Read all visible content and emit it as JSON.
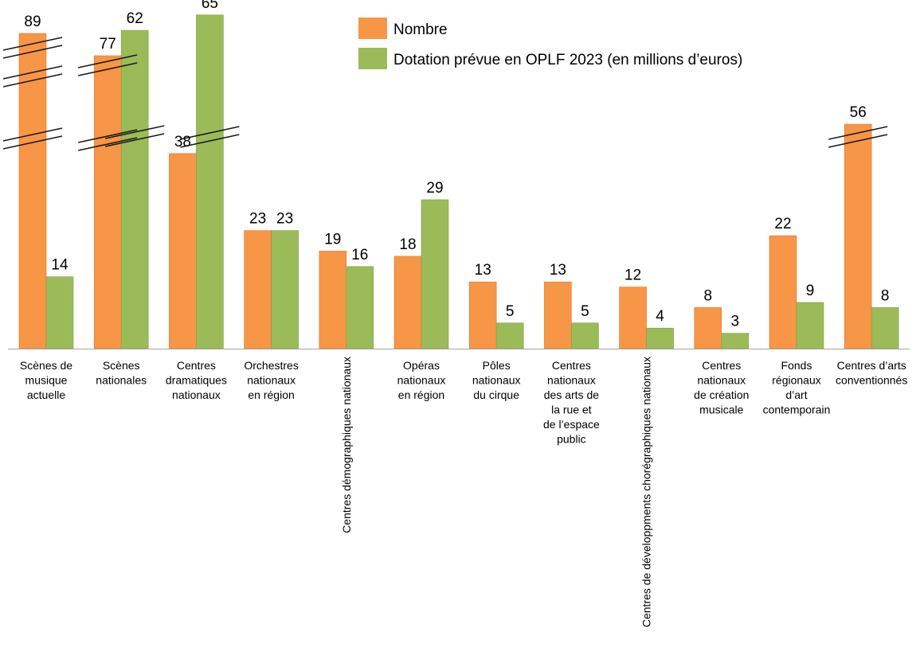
{
  "chart_data": {
    "type": "bar",
    "categories": [
      [
        "Scènes de",
        "musique",
        "actuelle"
      ],
      [
        "Scènes",
        "nationales"
      ],
      [
        "Centres",
        "dramatiques",
        "nationaux"
      ],
      [
        "Orchestres",
        "nationaux",
        "en région"
      ],
      [
        "Centres démographiques nationaux"
      ],
      [
        "Opéras",
        "nationaux",
        "en région"
      ],
      [
        "Pôles",
        "nationaux",
        "du cirque"
      ],
      [
        "Centres",
        "nationaux",
        "des arts de",
        "la rue  et",
        "de l’espace",
        "public"
      ],
      [
        "Centres de développments chorégraphiques nationaux"
      ],
      [
        "Centres",
        "nationaux",
        "de création",
        "musicale"
      ],
      [
        "Fonds",
        "régionaux",
        "d’art",
        "contemporain"
      ],
      [
        "Centres d’arts",
        "conventionnés"
      ]
    ],
    "vertical_category_labels": [
      4,
      8
    ],
    "series": [
      {
        "name": "Nombre",
        "color": "#F79646",
        "values": [
          89,
          77,
          38,
          23,
          19,
          18,
          13,
          13,
          12,
          8,
          22,
          56
        ]
      },
      {
        "name": "Dotation prévue en OPLF 2023 (en millions d’euros)",
        "color": "#9BBB59",
        "values": [
          14,
          62,
          65,
          23,
          16,
          29,
          5,
          5,
          4,
          3,
          9,
          8
        ]
      }
    ],
    "axis_breaks": {
      "series_0": {
        "0": 3,
        "1": 2,
        "11": 1
      },
      "series_1": {
        "1": 1,
        "2": 1
      }
    },
    "legend_position": "top-center",
    "grid": false
  }
}
